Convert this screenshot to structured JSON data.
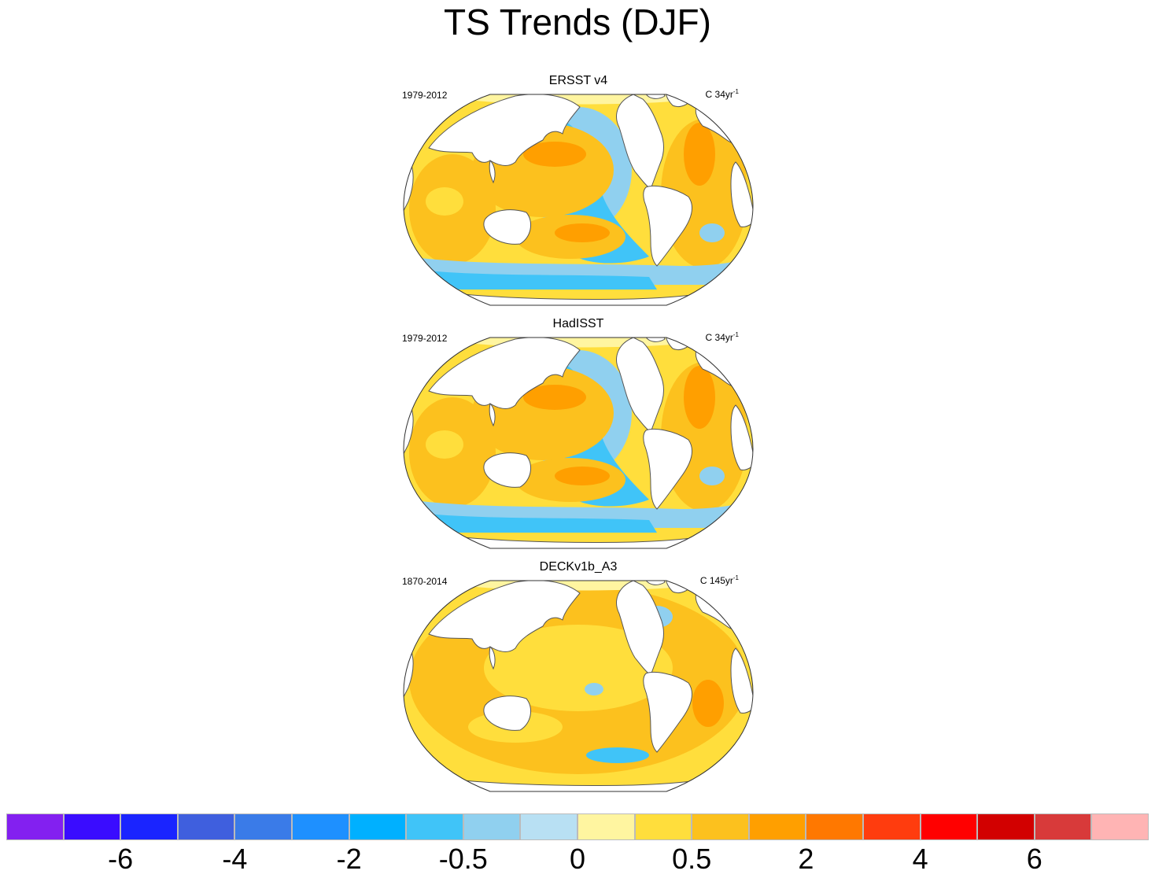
{
  "title": "TS Trends (DJF)",
  "panels": [
    {
      "title": "ERSST v4",
      "period": "1979-2012",
      "units_prefix": "C 34yr",
      "units_exp": "-1",
      "pattern": "la-nina-recent"
    },
    {
      "title": "HadISST",
      "period": "1979-2012",
      "units_prefix": "C 34yr",
      "units_exp": "-1",
      "pattern": "la-nina-recent"
    },
    {
      "title": "DECKv1b_A3",
      "period": "1870-2014",
      "units_prefix": "C 145yr",
      "units_exp": "-1",
      "pattern": "uniform-warming"
    }
  ],
  "colorbar": {
    "colors": [
      "#8320f0",
      "#3a0cff",
      "#1a24ff",
      "#3f5fde",
      "#3a7be8",
      "#1e90ff",
      "#00b0ff",
      "#40c4f8",
      "#90d0ef",
      "#b8e0f3",
      "#fff5a0",
      "#ffde3c",
      "#fcc11e",
      "#ff9f00",
      "#ff7800",
      "#ff3c0e",
      "#ff0000",
      "#d20000",
      "#d83a3a",
      "#ffb4b4"
    ],
    "tick_labels": [
      "-6",
      "-4",
      "-2",
      "-0.5",
      "0",
      "0.5",
      "2",
      "4",
      "6"
    ]
  },
  "colors": {
    "land": "#ffffff",
    "coastline": "#555555",
    "cool_trend": "#40c4f8",
    "weak_cool": "#90d0ef",
    "neutral": "#fff5a0",
    "weak_warm": "#ffde3c",
    "warm_trend": "#fcc11e",
    "strong_warm": "#ff9f00"
  }
}
